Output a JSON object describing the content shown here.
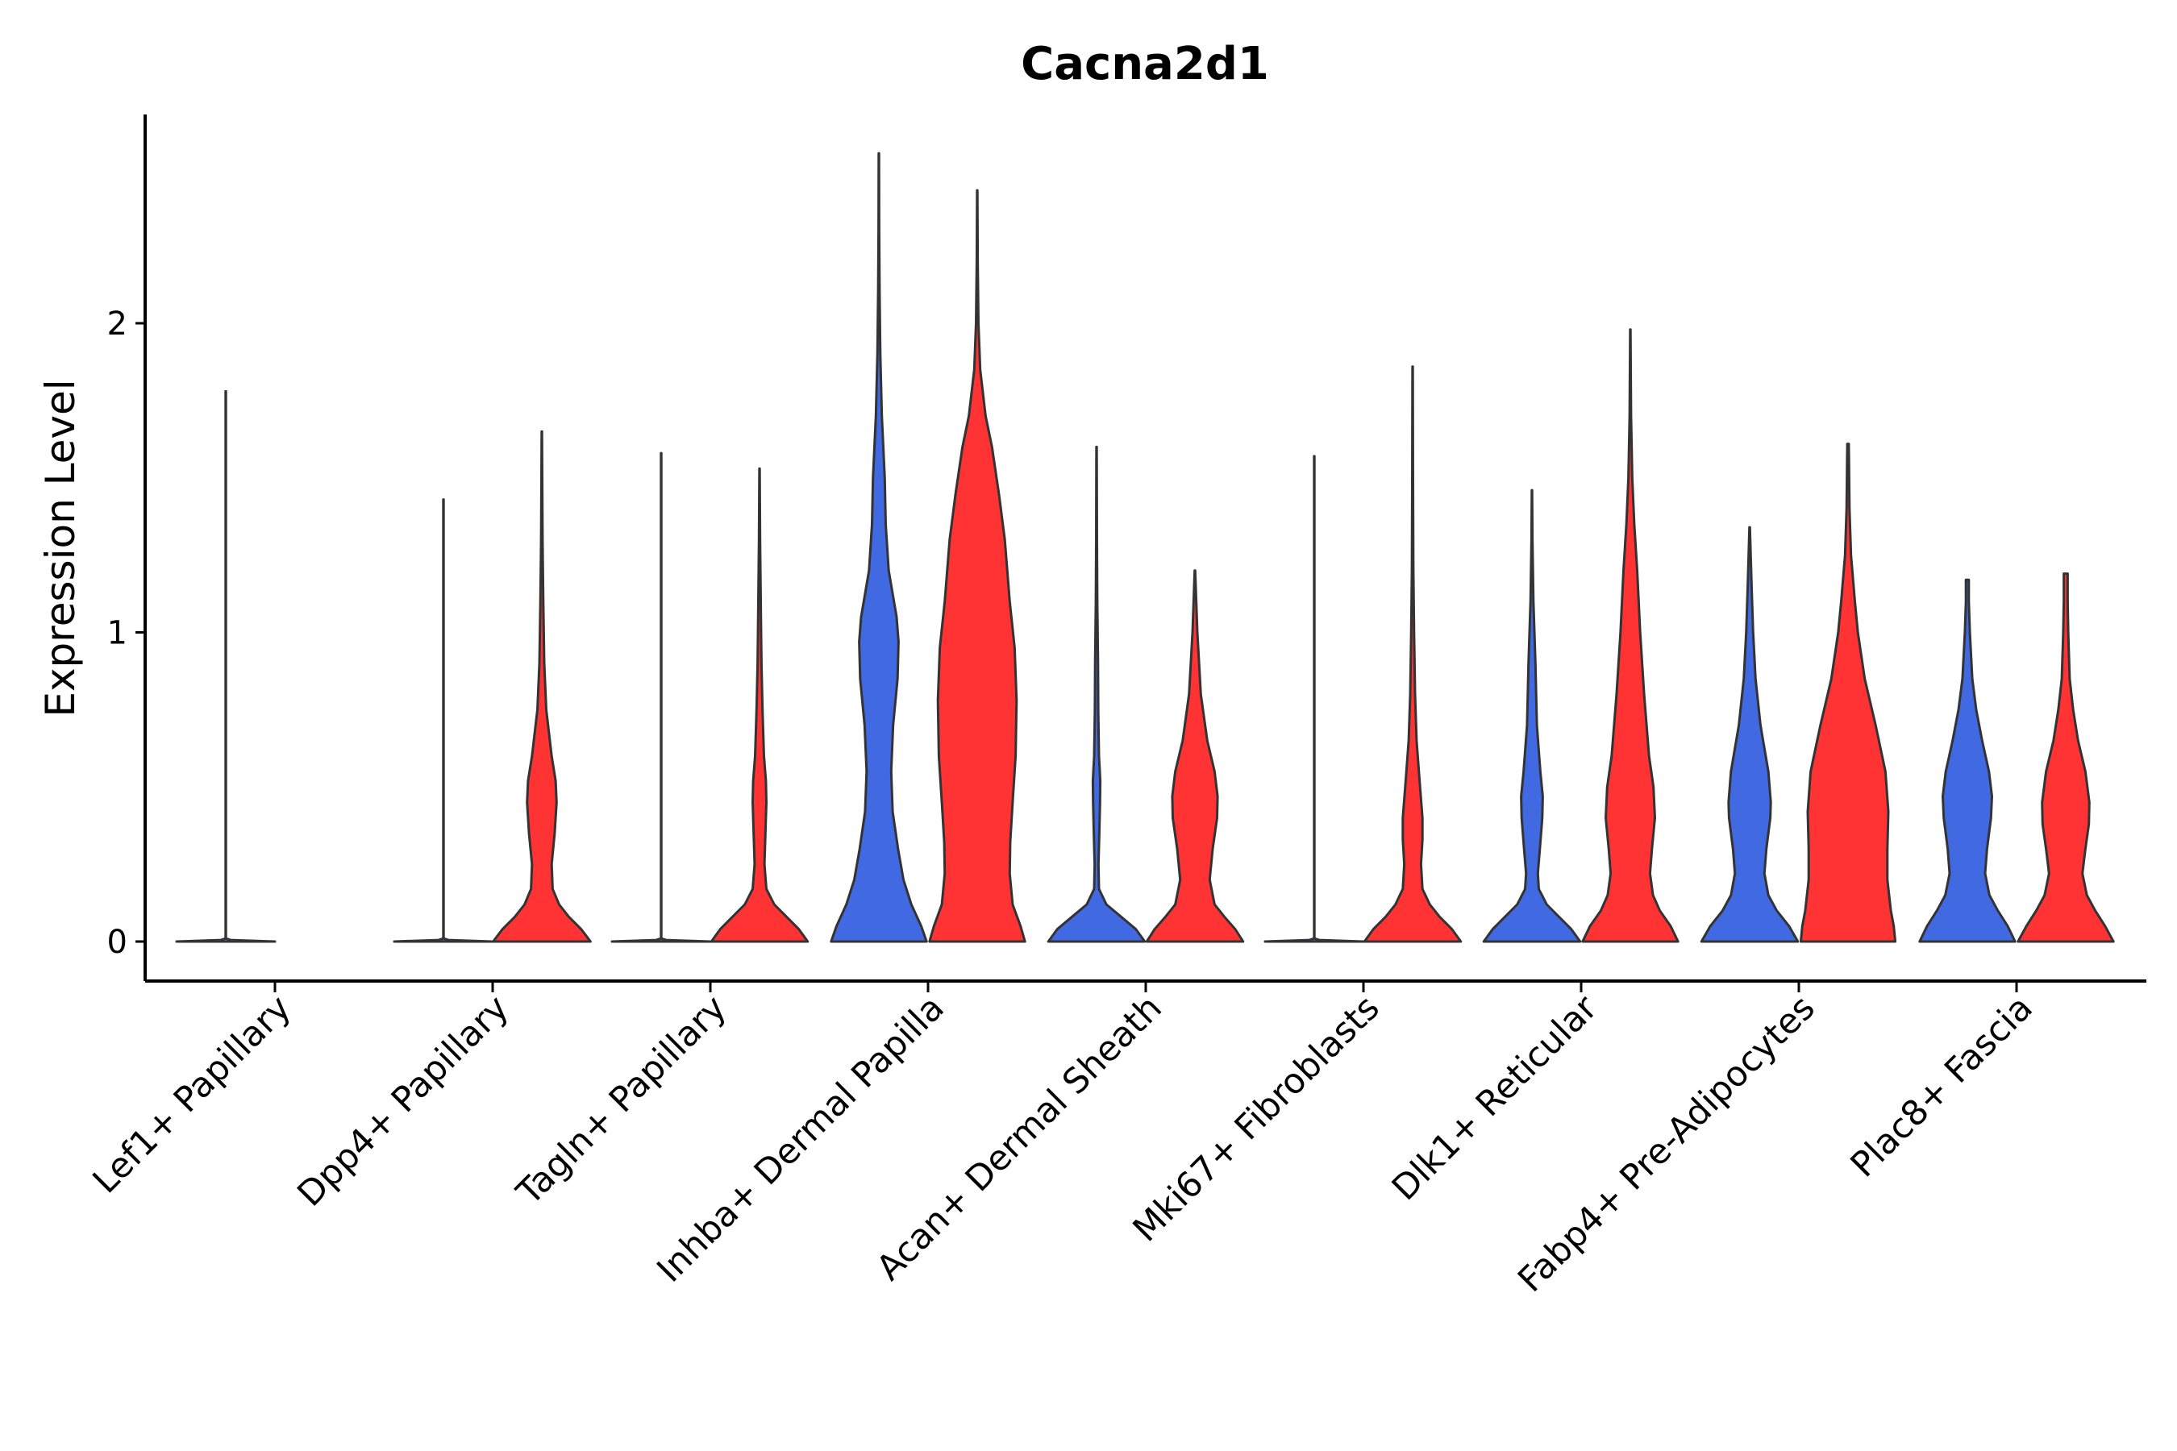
{
  "chart_data": {
    "type": "violin",
    "title": "Cacna2d1",
    "xlabel": "",
    "ylabel": "Expression Level",
    "ylim": [
      -0.13,
      2.68
    ],
    "yticks": [
      0,
      1,
      2
    ],
    "grid": false,
    "legend": "none",
    "colors": {
      "group_a": "#4169E1",
      "group_b": "#FF3333",
      "outline": "#333333"
    },
    "categories": [
      "Lef1+ Papillary",
      "Dpp4+ Papillary",
      "Tagln+ Papillary",
      "Inhba+ Dermal Papilla",
      "Acan+ Dermal Sheath",
      "Mki67+ Fibroblasts",
      "Dlk1+ Reticular",
      "Fabp4+ Pre-Adipocytes",
      "Plac8+ Fascia"
    ],
    "series": [
      {
        "name": "group_a",
        "color": "#4169E1",
        "violins": [
          {
            "max": 1.78,
            "profile": [
              [
                0,
                1.0
              ],
              [
                0.005,
                0.1
              ],
              [
                0.01,
                0.003
              ],
              [
                1.78,
                0.003
              ]
            ]
          },
          {
            "max": 1.43,
            "profile": [
              [
                0,
                1.0
              ],
              [
                0.005,
                0.1
              ],
              [
                0.01,
                0.003
              ],
              [
                1.43,
                0.003
              ]
            ]
          },
          {
            "max": 1.58,
            "profile": [
              [
                0,
                1.0
              ],
              [
                0.005,
                0.1
              ],
              [
                0.01,
                0.003
              ],
              [
                1.58,
                0.003
              ]
            ]
          },
          {
            "max": 2.55,
            "profile": [
              [
                0,
                0.97
              ],
              [
                0.05,
                0.86
              ],
              [
                0.12,
                0.66
              ],
              [
                0.2,
                0.5
              ],
              [
                0.3,
                0.39
              ],
              [
                0.42,
                0.28
              ],
              [
                0.55,
                0.25
              ],
              [
                0.7,
                0.29
              ],
              [
                0.85,
                0.38
              ],
              [
                0.97,
                0.4
              ],
              [
                1.05,
                0.36
              ],
              [
                1.2,
                0.2
              ],
              [
                1.35,
                0.14
              ],
              [
                1.5,
                0.12
              ],
              [
                1.7,
                0.06
              ],
              [
                1.9,
                0.03
              ],
              [
                2.1,
                0.015
              ],
              [
                2.3,
                0.007
              ],
              [
                2.55,
                0.003
              ]
            ]
          },
          {
            "max": 1.6,
            "profile": [
              [
                0,
                0.98
              ],
              [
                0.04,
                0.8
              ],
              [
                0.08,
                0.5
              ],
              [
                0.12,
                0.2
              ],
              [
                0.17,
                0.05
              ],
              [
                0.25,
                0.04
              ],
              [
                0.35,
                0.055
              ],
              [
                0.45,
                0.07
              ],
              [
                0.52,
                0.075
              ],
              [
                0.6,
                0.05
              ],
              [
                0.75,
                0.035
              ],
              [
                0.9,
                0.03
              ],
              [
                1.1,
                0.015
              ],
              [
                1.3,
                0.008
              ],
              [
                1.6,
                0.003
              ]
            ]
          },
          {
            "max": 1.57,
            "profile": [
              [
                0,
                1.0
              ],
              [
                0.005,
                0.1
              ],
              [
                0.01,
                0.003
              ],
              [
                1.57,
                0.003
              ]
            ]
          },
          {
            "max": 1.46,
            "profile": [
              [
                0,
                0.98
              ],
              [
                0.04,
                0.8
              ],
              [
                0.08,
                0.55
              ],
              [
                0.12,
                0.3
              ],
              [
                0.17,
                0.14
              ],
              [
                0.22,
                0.12
              ],
              [
                0.3,
                0.16
              ],
              [
                0.4,
                0.21
              ],
              [
                0.47,
                0.22
              ],
              [
                0.55,
                0.17
              ],
              [
                0.7,
                0.1
              ],
              [
                0.9,
                0.07
              ],
              [
                1.1,
                0.03
              ],
              [
                1.3,
                0.01
              ],
              [
                1.46,
                0.003
              ]
            ]
          },
          {
            "max": 1.34,
            "profile": [
              [
                0,
                0.98
              ],
              [
                0.05,
                0.8
              ],
              [
                0.1,
                0.55
              ],
              [
                0.15,
                0.38
              ],
              [
                0.22,
                0.3
              ],
              [
                0.3,
                0.34
              ],
              [
                0.4,
                0.42
              ],
              [
                0.45,
                0.43
              ],
              [
                0.55,
                0.38
              ],
              [
                0.7,
                0.22
              ],
              [
                0.85,
                0.12
              ],
              [
                1.0,
                0.07
              ],
              [
                1.15,
                0.04
              ],
              [
                1.34,
                0.005
              ]
            ]
          },
          {
            "max": 1.17,
            "profile": [
              [
                0,
                0.97
              ],
              [
                0.05,
                0.82
              ],
              [
                0.1,
                0.62
              ],
              [
                0.15,
                0.45
              ],
              [
                0.22,
                0.36
              ],
              [
                0.3,
                0.4
              ],
              [
                0.4,
                0.48
              ],
              [
                0.47,
                0.5
              ],
              [
                0.55,
                0.44
              ],
              [
                0.65,
                0.3
              ],
              [
                0.75,
                0.18
              ],
              [
                0.85,
                0.1
              ],
              [
                1.0,
                0.05
              ],
              [
                1.1,
                0.03
              ],
              [
                1.17,
                0.03
              ]
            ]
          }
        ]
      },
      {
        "name": "group_b",
        "color": "#FF3333",
        "violins": [
          null,
          {
            "max": 1.65,
            "profile": [
              [
                0,
                0.99
              ],
              [
                0.04,
                0.8
              ],
              [
                0.08,
                0.55
              ],
              [
                0.12,
                0.35
              ],
              [
                0.17,
                0.22
              ],
              [
                0.25,
                0.2
              ],
              [
                0.35,
                0.26
              ],
              [
                0.45,
                0.3
              ],
              [
                0.52,
                0.28
              ],
              [
                0.6,
                0.2
              ],
              [
                0.75,
                0.09
              ],
              [
                0.9,
                0.05
              ],
              [
                1.1,
                0.03
              ],
              [
                1.3,
                0.015
              ],
              [
                1.5,
                0.008
              ],
              [
                1.65,
                0.004
              ]
            ]
          },
          {
            "max": 1.53,
            "profile": [
              [
                0,
                0.98
              ],
              [
                0.04,
                0.8
              ],
              [
                0.08,
                0.55
              ],
              [
                0.12,
                0.3
              ],
              [
                0.17,
                0.14
              ],
              [
                0.25,
                0.1
              ],
              [
                0.35,
                0.12
              ],
              [
                0.45,
                0.14
              ],
              [
                0.52,
                0.13
              ],
              [
                0.6,
                0.09
              ],
              [
                0.75,
                0.06
              ],
              [
                0.9,
                0.04
              ],
              [
                1.1,
                0.025
              ],
              [
                1.3,
                0.012
              ],
              [
                1.53,
                0.004
              ]
            ]
          },
          {
            "max": 2.43,
            "profile": [
              [
                0,
                0.97
              ],
              [
                0.05,
                0.88
              ],
              [
                0.12,
                0.72
              ],
              [
                0.22,
                0.66
              ],
              [
                0.32,
                0.67
              ],
              [
                0.45,
                0.72
              ],
              [
                0.6,
                0.78
              ],
              [
                0.78,
                0.8
              ],
              [
                0.95,
                0.76
              ],
              [
                1.1,
                0.66
              ],
              [
                1.3,
                0.56
              ],
              [
                1.45,
                0.44
              ],
              [
                1.6,
                0.3
              ],
              [
                1.7,
                0.17
              ],
              [
                1.85,
                0.06
              ],
              [
                2.0,
                0.025
              ],
              [
                2.2,
                0.01
              ],
              [
                2.43,
                0.003
              ]
            ]
          },
          {
            "max": 1.2,
            "profile": [
              [
                0,
                0.98
              ],
              [
                0.04,
                0.82
              ],
              [
                0.08,
                0.6
              ],
              [
                0.12,
                0.4
              ],
              [
                0.2,
                0.3
              ],
              [
                0.3,
                0.36
              ],
              [
                0.4,
                0.45
              ],
              [
                0.47,
                0.46
              ],
              [
                0.55,
                0.4
              ],
              [
                0.65,
                0.25
              ],
              [
                0.8,
                0.12
              ],
              [
                1.0,
                0.05
              ],
              [
                1.2,
                0.005
              ]
            ]
          },
          {
            "max": 1.86,
            "profile": [
              [
                0,
                0.98
              ],
              [
                0.04,
                0.8
              ],
              [
                0.08,
                0.55
              ],
              [
                0.12,
                0.35
              ],
              [
                0.17,
                0.2
              ],
              [
                0.25,
                0.17
              ],
              [
                0.33,
                0.2
              ],
              [
                0.4,
                0.2
              ],
              [
                0.5,
                0.15
              ],
              [
                0.65,
                0.08
              ],
              [
                0.8,
                0.05
              ],
              [
                1.0,
                0.03
              ],
              [
                1.2,
                0.015
              ],
              [
                1.5,
                0.008
              ],
              [
                1.86,
                0.003
              ]
            ]
          },
          {
            "max": 1.98,
            "profile": [
              [
                0,
                0.97
              ],
              [
                0.05,
                0.82
              ],
              [
                0.1,
                0.6
              ],
              [
                0.15,
                0.46
              ],
              [
                0.22,
                0.4
              ],
              [
                0.3,
                0.44
              ],
              [
                0.4,
                0.5
              ],
              [
                0.5,
                0.47
              ],
              [
                0.6,
                0.38
              ],
              [
                0.8,
                0.28
              ],
              [
                1.0,
                0.2
              ],
              [
                1.2,
                0.14
              ],
              [
                1.35,
                0.08
              ],
              [
                1.5,
                0.04
              ],
              [
                1.7,
                0.015
              ],
              [
                1.98,
                0.003
              ]
            ]
          },
          {
            "max": 1.61,
            "profile": [
              [
                0,
                0.96
              ],
              [
                0.05,
                0.93
              ],
              [
                0.1,
                0.87
              ],
              [
                0.2,
                0.8
              ],
              [
                0.3,
                0.8
              ],
              [
                0.42,
                0.82
              ],
              [
                0.55,
                0.76
              ],
              [
                0.7,
                0.56
              ],
              [
                0.85,
                0.34
              ],
              [
                1.0,
                0.2
              ],
              [
                1.1,
                0.14
              ],
              [
                1.25,
                0.06
              ],
              [
                1.4,
                0.03
              ],
              [
                1.55,
                0.02
              ],
              [
                1.61,
                0.015
              ]
            ]
          },
          {
            "max": 1.19,
            "profile": [
              [
                0,
                0.97
              ],
              [
                0.05,
                0.8
              ],
              [
                0.1,
                0.6
              ],
              [
                0.15,
                0.43
              ],
              [
                0.22,
                0.34
              ],
              [
                0.3,
                0.4
              ],
              [
                0.38,
                0.47
              ],
              [
                0.45,
                0.48
              ],
              [
                0.55,
                0.4
              ],
              [
                0.65,
                0.25
              ],
              [
                0.75,
                0.15
              ],
              [
                0.85,
                0.08
              ],
              [
                1.0,
                0.05
              ],
              [
                1.1,
                0.04
              ],
              [
                1.19,
                0.04
              ]
            ]
          }
        ]
      }
    ]
  }
}
